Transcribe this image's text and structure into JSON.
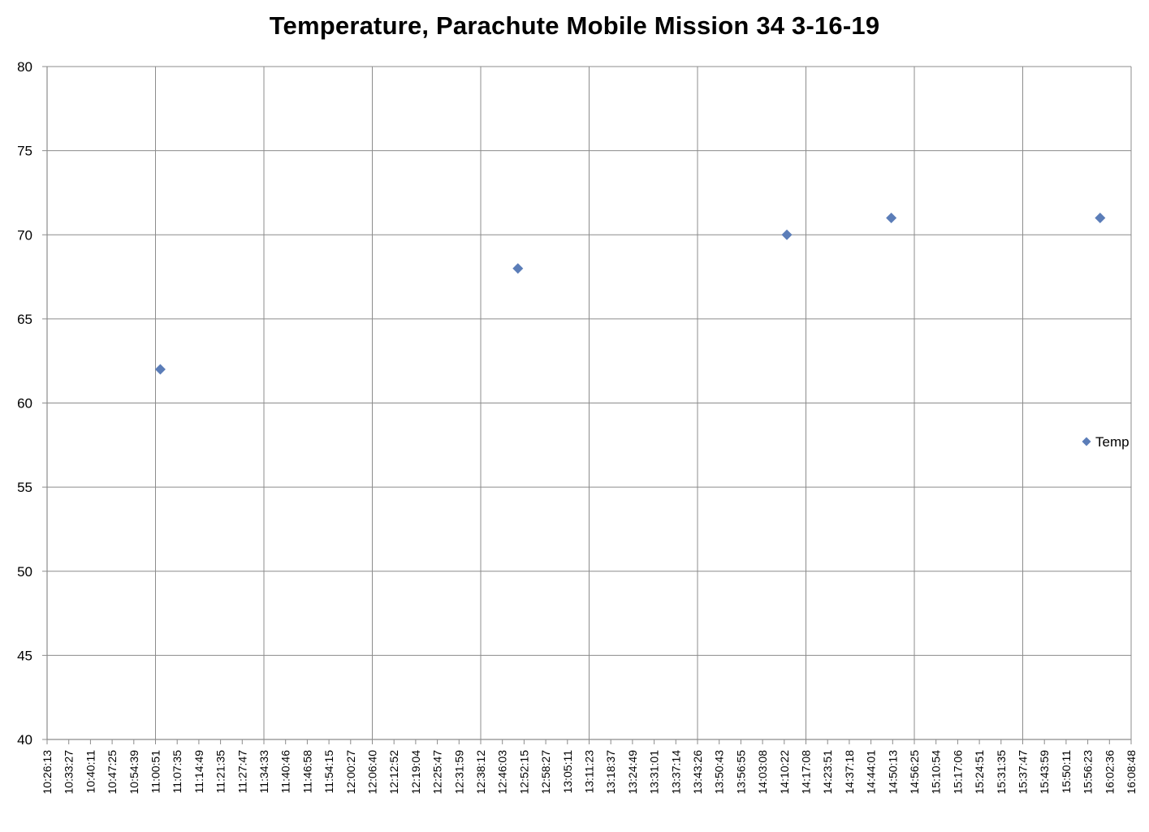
{
  "chart_data": {
    "type": "scatter",
    "title": "Temperature, Parachute Mobile Mission 34 3-16-19",
    "xlabel": "",
    "ylabel": "",
    "ylim": [
      40,
      80
    ],
    "yticks": [
      40,
      45,
      50,
      55,
      60,
      65,
      70,
      75,
      80
    ],
    "xlim": [
      "10:26:13",
      "16:08:48"
    ],
    "xtick_labels": [
      "10:26:13",
      "10:33:27",
      "10:40:11",
      "10:47:25",
      "10:54:39",
      "11:00:51",
      "11:07:35",
      "11:14:49",
      "11:21:35",
      "11:27:47",
      "11:34:33",
      "11:40:46",
      "11:46:58",
      "11:54:15",
      "12:00:27",
      "12:06:40",
      "12:12:52",
      "12:19:04",
      "12:25:47",
      "12:31:59",
      "12:38:12",
      "12:46:03",
      "12:52:15",
      "12:58:27",
      "13:05:11",
      "13:11:23",
      "13:18:37",
      "13:24:49",
      "13:31:01",
      "13:37:14",
      "13:43:26",
      "13:50:43",
      "13:56:55",
      "14:03:08",
      "14:10:22",
      "14:17:08",
      "14:23:51",
      "14:37:18",
      "14:44:01",
      "14:50:13",
      "14:56:25",
      "15:10:54",
      "15:17:06",
      "15:24:51",
      "15:31:35",
      "15:37:47",
      "15:43:59",
      "15:50:11",
      "15:56:23",
      "16:02:36",
      "16:08:48"
    ],
    "grid": true,
    "legend_position": "right",
    "series": [
      {
        "name": "Temp",
        "color": "#5b7db8",
        "marker": "diamond",
        "x": [
          "11:02:00",
          "12:55:00",
          "14:20:00",
          "14:53:00",
          "15:59:00"
        ],
        "y": [
          62,
          68,
          70,
          71,
          71
        ]
      }
    ]
  }
}
